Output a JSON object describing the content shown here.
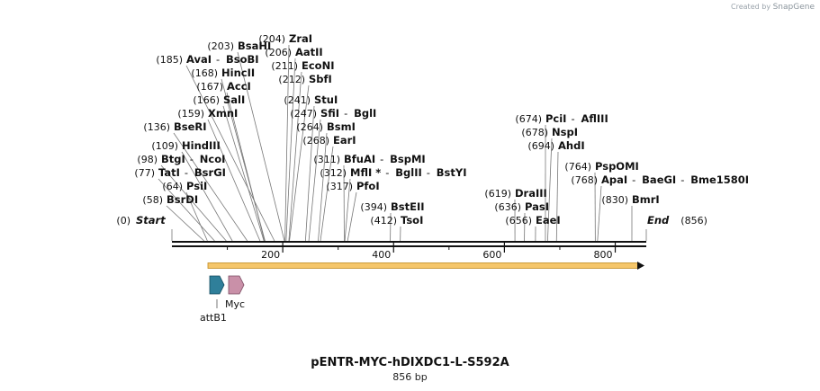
{
  "credit": {
    "prefix": "Created by",
    "brand": "SnapGene"
  },
  "map": {
    "title": "pENTR-MYC-hDIXDC1-L-S592A",
    "subtitle": "856 bp",
    "length": 856,
    "ruler_ticks": [
      "200",
      "400",
      "600",
      "800"
    ],
    "ends": [
      {
        "pos": "(0)",
        "name": "Start"
      },
      {
        "pos": "(856)",
        "name": "End"
      }
    ],
    "sites": [
      {
        "names": [
          "BsrDI"
        ],
        "pos": "(58)"
      },
      {
        "names": [
          "PsiI"
        ],
        "pos": "(64)"
      },
      {
        "names": [
          "TatI",
          "BsrGI"
        ],
        "pos": "(77)"
      },
      {
        "names": [
          "BtgI",
          "NcoI"
        ],
        "pos": "(98)"
      },
      {
        "names": [
          "HindIII"
        ],
        "pos": "(109)"
      },
      {
        "names": [
          "BseRI"
        ],
        "pos": "(136)"
      },
      {
        "names": [
          "XmnI"
        ],
        "pos": "(159)"
      },
      {
        "names": [
          "SalI"
        ],
        "pos": "(166)"
      },
      {
        "names": [
          "AccI"
        ],
        "pos": "(167)"
      },
      {
        "names": [
          "HincII"
        ],
        "pos": "(168)"
      },
      {
        "names": [
          "AvaI",
          "BsoBI"
        ],
        "pos": "(185)"
      },
      {
        "names": [
          "BsaHI"
        ],
        "pos": "(203)"
      },
      {
        "names": [
          "ZraI"
        ],
        "pos": "(204)"
      },
      {
        "names": [
          "AatII"
        ],
        "pos": "(206)"
      },
      {
        "names": [
          "EcoNI"
        ],
        "pos": "(211)"
      },
      {
        "names": [
          "SbfI"
        ],
        "pos": "(212)"
      },
      {
        "names": [
          "StuI"
        ],
        "pos": "(241)"
      },
      {
        "names": [
          "SfiI",
          "BglI"
        ],
        "pos": "(247)"
      },
      {
        "names": [
          "BsmI"
        ],
        "pos": "(264)"
      },
      {
        "names": [
          "EarI"
        ],
        "pos": "(268)"
      },
      {
        "names": [
          "BfuAI",
          "BspMI"
        ],
        "pos": "(311)"
      },
      {
        "names": [
          "MflI *",
          "BglII",
          "BstYI"
        ],
        "pos": "(312)"
      },
      {
        "names": [
          "PfoI"
        ],
        "pos": "(317)"
      },
      {
        "names": [
          "BstEII"
        ],
        "pos": "(394)"
      },
      {
        "names": [
          "TsoI"
        ],
        "pos": "(412)"
      },
      {
        "names": [
          "DraIII"
        ],
        "pos": "(619)"
      },
      {
        "names": [
          "PasI"
        ],
        "pos": "(636)"
      },
      {
        "names": [
          "EaeI"
        ],
        "pos": "(656)"
      },
      {
        "names": [
          "PciI",
          "AflIII"
        ],
        "pos": "(674)"
      },
      {
        "names": [
          "NspI"
        ],
        "pos": "(678)"
      },
      {
        "names": [
          "AhdI"
        ],
        "pos": "(694)"
      },
      {
        "names": [
          "PspOMI"
        ],
        "pos": "(764)"
      },
      {
        "names": [
          "ApaI",
          "BaeGI",
          "Bme1580I"
        ],
        "pos": "(768)"
      },
      {
        "names": [
          "BmrI"
        ],
        "pos": "(830)"
      }
    ],
    "features": [
      {
        "label": "attB1",
        "color": "#2f7f9a"
      },
      {
        "label": "Myc",
        "color": "#c990a8"
      }
    ],
    "orf_color": "#f5c66a"
  }
}
